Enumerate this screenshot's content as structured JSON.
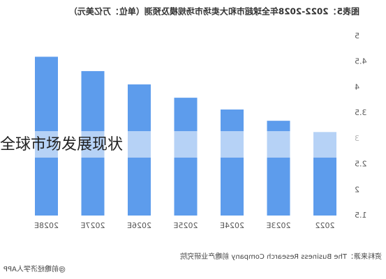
{
  "chart_data": {
    "type": "bar",
    "title": "图表5：2022-2028年全球超市和大卖场市场规模及预测（单位：万亿美元）",
    "categories": [
      "2022",
      "2023E",
      "2024E",
      "2025E",
      "2026E",
      "2027E",
      "2028E"
    ],
    "values": [
      3.13,
      3.35,
      3.57,
      3.8,
      4.06,
      4.32,
      4.6
    ],
    "color": "#5d9cec",
    "ylim": [
      1.5,
      5
    ],
    "yticks": [
      1.5,
      2,
      2.5,
      3,
      3.5,
      4,
      4.5,
      5
    ],
    "source": "资料来源：The Business Research Company 前瞻产业研究院",
    "watermark": "@前瞻经济学人APP",
    "overlay_text": "全球市场发展现状",
    "mirrored": true
  }
}
